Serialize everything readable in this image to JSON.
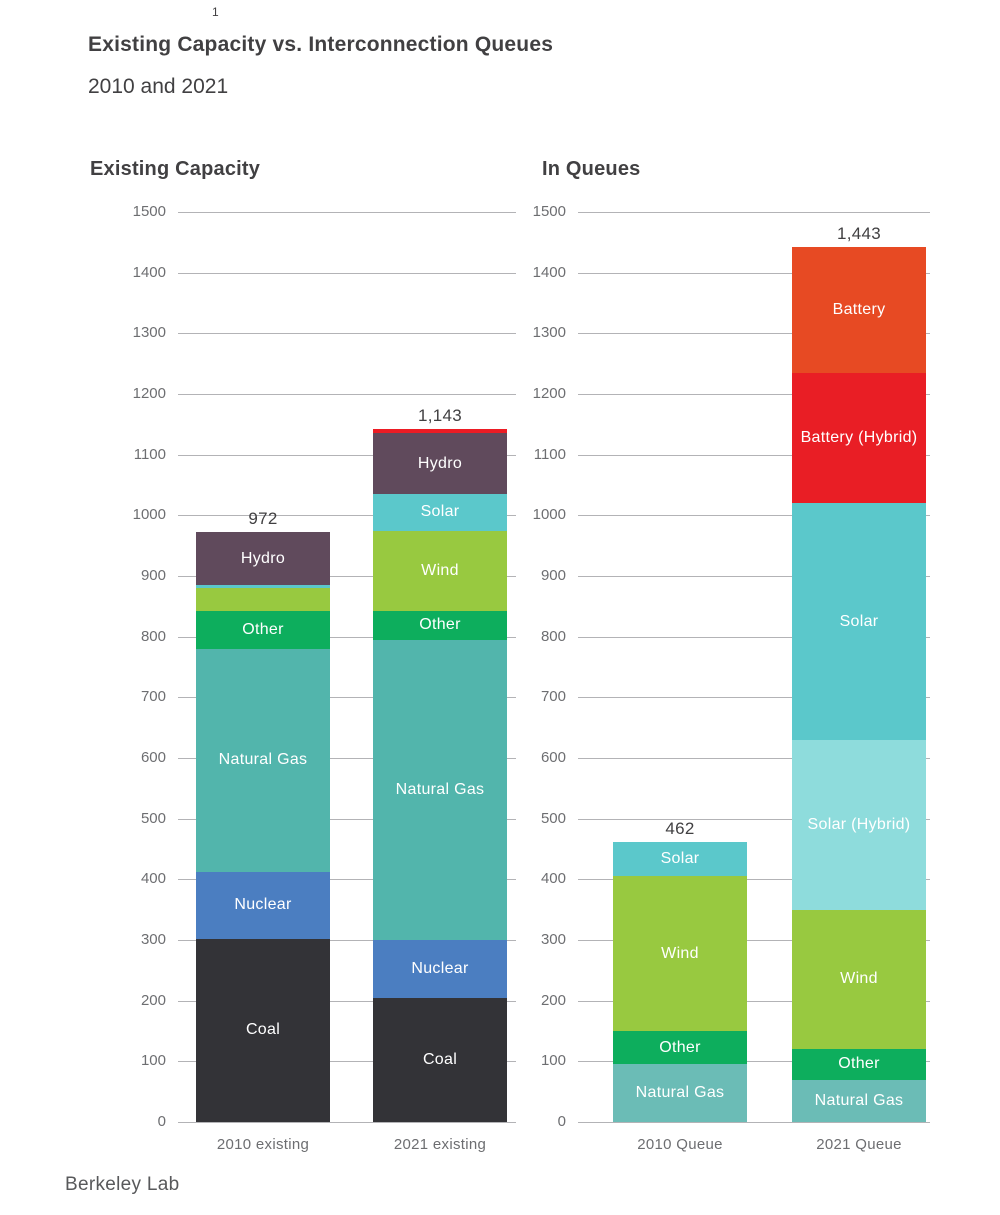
{
  "page": {
    "slide_number": "1",
    "title": "Existing Capacity vs. Interconnection Queues",
    "subtitle": "2010 and 2021",
    "footer": "Berkeley Lab"
  },
  "colors": {
    "text_dark": "#414042",
    "text_gray": "#6d6e71",
    "gridline": "#b3b3b6",
    "segment_label": "#ffffff",
    "background": "#ffffff"
  },
  "chart_data": [
    {
      "type": "bar",
      "stacked": true,
      "title": "Existing Capacity",
      "categories": [
        "2010 existing",
        "2021 existing"
      ],
      "totals": [
        "972",
        "1,143"
      ],
      "total_values": [
        972,
        1143
      ],
      "ylim": [
        0,
        1500
      ],
      "ytick_step": 100,
      "grid": true,
      "legend": "none",
      "label_min_value": 45,
      "series": [
        {
          "name": "Coal",
          "color": "#333337",
          "values": [
            302,
            205
          ]
        },
        {
          "name": "Nuclear",
          "color": "#4b7ec1",
          "values": [
            110,
            95
          ]
        },
        {
          "name": "Natural Gas",
          "color": "#52b5ac",
          "values": [
            368,
            495
          ]
        },
        {
          "name": "Other",
          "color": "#0dae5d",
          "values": [
            62,
            47
          ]
        },
        {
          "name": "Wind",
          "color": "#98c940",
          "values": [
            38,
            133
          ]
        },
        {
          "name": "Solar",
          "color": "#5bc8cb",
          "values": [
            5,
            60
          ]
        },
        {
          "name": "Hydro",
          "color": "#604a5c",
          "values": [
            87,
            100
          ]
        },
        {
          "name": "Battery",
          "color": "#ec1c24",
          "values": [
            0,
            8
          ]
        }
      ]
    },
    {
      "type": "bar",
      "stacked": true,
      "title": "In Queues",
      "categories": [
        "2010 Queue",
        "2021 Queue"
      ],
      "totals": [
        "462",
        "1,443"
      ],
      "total_values": [
        462,
        1443
      ],
      "ylim": [
        0,
        1500
      ],
      "ytick_step": 100,
      "grid": true,
      "legend": "none",
      "label_min_value": 45,
      "series": [
        {
          "name": "Natural Gas",
          "color": "#6bbcb6",
          "values": [
            95,
            70
          ]
        },
        {
          "name": "Other",
          "color": "#0dae5d",
          "values": [
            55,
            50
          ]
        },
        {
          "name": "Wind",
          "color": "#98c940",
          "values": [
            255,
            230
          ]
        },
        {
          "name": "Solar (Hybrid)",
          "color": "#8edcdc",
          "values": [
            0,
            280
          ]
        },
        {
          "name": "Solar",
          "color": "#5bc8cb",
          "values": [
            57,
            390
          ]
        },
        {
          "name": "Battery (Hybrid)",
          "color": "#e91e25",
          "values": [
            0,
            215
          ]
        },
        {
          "name": "Battery",
          "color": "#e74a23",
          "values": [
            0,
            208
          ]
        }
      ]
    }
  ]
}
